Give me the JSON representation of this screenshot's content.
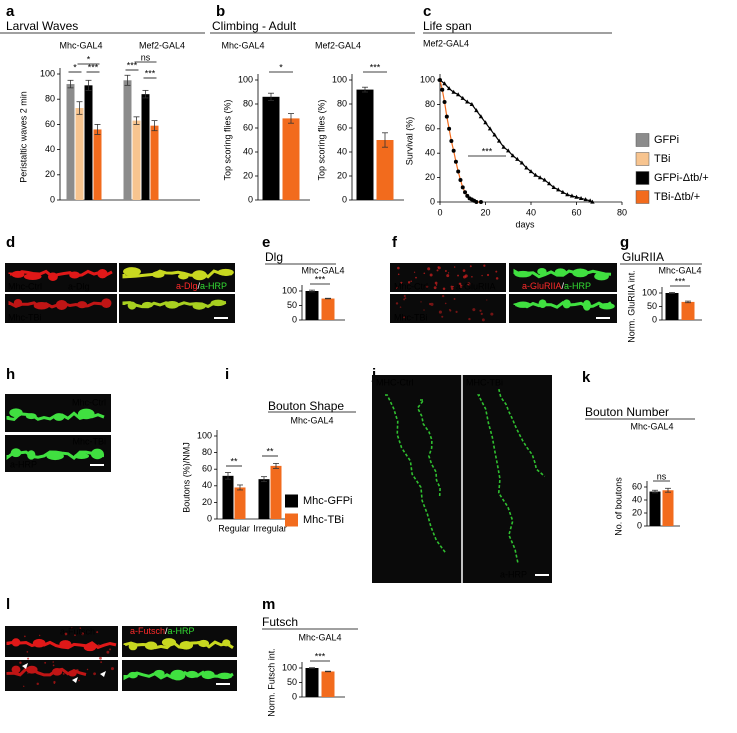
{
  "chart_data": [
    {
      "type": "bar",
      "panel": "a",
      "title": "Larval Waves",
      "groups": [
        "Mhc-GAL4",
        "Mef2-GAL4"
      ],
      "ylabel": "Peristaltic waves 2 min",
      "ylim": [
        0,
        100
      ],
      "yticks": [
        0,
        20,
        40,
        60,
        80,
        100
      ],
      "series": [
        {
          "name": "GFPi",
          "color": "#8c8c8c",
          "values": [
            92,
            95
          ],
          "errors": [
            3,
            4
          ]
        },
        {
          "name": "TBi",
          "color": "#f7c48f",
          "values": [
            73,
            63
          ],
          "errors": [
            5,
            3
          ]
        },
        {
          "name": "GFPi-Δtb/+",
          "color": "#000000",
          "values": [
            91,
            84
          ],
          "errors": [
            4,
            3
          ]
        },
        {
          "name": "TBi-Δtb/+",
          "color": "#f26b1d",
          "values": [
            56,
            59
          ],
          "errors": [
            4,
            4
          ]
        }
      ],
      "significance": [
        "*",
        "*",
        "***",
        "***",
        "ns",
        "***"
      ]
    },
    {
      "type": "bar",
      "panel": "b",
      "title": "Climbing - Adult",
      "subtitle": "Mhc-GAL4",
      "ylabel": "Top scoring flies (%)",
      "ylim": [
        0,
        100
      ],
      "yticks": [
        0,
        20,
        40,
        60,
        80,
        100
      ],
      "values": [
        86,
        68
      ],
      "errors": [
        3,
        4
      ],
      "colors": [
        "#000000",
        "#f26b1d"
      ],
      "significance": [
        "*"
      ]
    },
    {
      "type": "bar",
      "subtitle": "Mef2-GAL4",
      "ylabel": "Top scoring flies (%)",
      "ylim": [
        0,
        100
      ],
      "yticks": [
        0,
        20,
        40,
        60,
        80,
        100
      ],
      "values": [
        92,
        50
      ],
      "errors": [
        2,
        6
      ],
      "colors": [
        "#000000",
        "#f26b1d"
      ],
      "significance": [
        "***"
      ]
    },
    {
      "type": "line",
      "panel": "c",
      "title": "Life span",
      "subtitle": "Mef2-GAL4",
      "ylabel": "Survival (%)",
      "xlabel": "days",
      "xlim": [
        0,
        80
      ],
      "xticks": [
        0,
        20,
        40,
        60,
        80
      ],
      "ylim": [
        0,
        100
      ],
      "yticks": [
        0,
        20,
        40,
        60,
        80,
        100
      ],
      "series": [
        {
          "color": "#000000",
          "marker": "triangle",
          "marker_color": "#000000",
          "x": [
            0,
            2,
            4,
            6,
            8,
            10,
            12,
            14,
            16,
            18,
            20,
            22,
            24,
            26,
            28,
            30,
            32,
            34,
            36,
            38,
            40,
            42,
            44,
            46,
            48,
            50,
            52,
            54,
            56,
            58,
            60,
            62,
            64,
            66,
            67
          ],
          "values": [
            100,
            97,
            93,
            90,
            88,
            85,
            82,
            80,
            75,
            70,
            65,
            60,
            55,
            50,
            45,
            42,
            38,
            35,
            32,
            28,
            25,
            22,
            20,
            18,
            15,
            12,
            10,
            8,
            6,
            5,
            4,
            3,
            2,
            1,
            0
          ]
        },
        {
          "color": "#f26b1d",
          "marker": "circle",
          "marker_color": "#000000",
          "x": [
            0,
            1,
            2,
            3,
            4,
            5,
            6,
            7,
            8,
            9,
            10,
            11,
            12,
            13,
            14,
            15,
            16,
            18
          ],
          "values": [
            100,
            92,
            82,
            70,
            60,
            50,
            42,
            33,
            25,
            18,
            12,
            8,
            5,
            3,
            2,
            1,
            0,
            0
          ]
        }
      ],
      "significance": [
        "***"
      ]
    },
    {
      "type": "bar",
      "panel": "e",
      "title": "Dlg",
      "subtitle": "Mhc-GAL4",
      "ylim": [
        0,
        100
      ],
      "yticks": [
        0,
        50,
        100
      ],
      "values": [
        100,
        74
      ],
      "errors": [
        3,
        1
      ],
      "colors": [
        "#000000",
        "#f26b1d"
      ],
      "significance": [
        "***"
      ]
    },
    {
      "type": "bar",
      "panel": "g",
      "title": "GluRIIA",
      "subtitle": "Mhc-GAL4",
      "ylabel": "Norm. GluRIIA int.",
      "ylim": [
        0,
        100
      ],
      "yticks": [
        0,
        50,
        100
      ],
      "values": [
        100,
        67
      ],
      "errors": [
        2,
        3
      ],
      "colors": [
        "#000000",
        "#f26b1d"
      ],
      "significance": [
        "***"
      ]
    },
    {
      "type": "bar",
      "panel": "i",
      "title": "Bouton Shape",
      "subtitle": "Mhc-GAL4",
      "ylabel": "Boutons (%)/NMJ",
      "ylim": [
        0,
        100
      ],
      "yticks": [
        0,
        20,
        40,
        60,
        80,
        100
      ],
      "categories": [
        "Regular",
        "Irregular"
      ],
      "series": [
        {
          "name": "Mhc-GFPi",
          "color": "#000000",
          "values": [
            52,
            48
          ],
          "errors": [
            4,
            3
          ]
        },
        {
          "name": "Mhc-TBi",
          "color": "#f26b1d",
          "values": [
            38,
            64
          ],
          "errors": [
            3,
            3
          ]
        }
      ],
      "significance": [
        "**",
        "**"
      ]
    },
    {
      "type": "bar",
      "panel": "k",
      "title": "Bouton Number",
      "subtitle": "Mhc-GAL4",
      "ylabel": "No. of boutons",
      "ylim": [
        0,
        60
      ],
      "yticks": [
        0,
        20,
        40,
        60
      ],
      "values": [
        53,
        55
      ],
      "errors": [
        2,
        3
      ],
      "colors": [
        "#000000",
        "#f26b1d"
      ],
      "significance": [
        "ns"
      ]
    },
    {
      "type": "bar",
      "panel": "m",
      "title": "Futsch",
      "subtitle": "Mhc-GAL4",
      "ylabel": "Norm. Futsch int.",
      "ylim": [
        0,
        100
      ],
      "yticks": [
        0,
        50,
        100
      ],
      "values": [
        100,
        88
      ],
      "errors": [
        1,
        1
      ],
      "colors": [
        "#000000",
        "#f26b1d"
      ],
      "significance": [
        "***"
      ]
    }
  ],
  "images": {
    "d": {
      "panel": "d",
      "rows": [
        "Mhc-Ctrl",
        "Mhc-TBi"
      ],
      "stain": "a-Dlg",
      "separator": "/",
      "merge": "a-HRP"
    },
    "f": {
      "panel": "f",
      "rows": [
        "Mhc-Ctrl",
        "Mhc-TBi"
      ],
      "stain": "a-GluRIIA",
      "separator": "/",
      "merge": "a-HRP"
    },
    "h": {
      "panel": "h",
      "rows": [
        "Mhc-Ctrl",
        "Mhc-TBi"
      ],
      "stain": "a-HRP"
    },
    "j": {
      "panel": "j",
      "columns": [
        "MHC-Ctrl",
        "MHC-TBi"
      ],
      "stain": "a-HRP"
    },
    "l": {
      "panel": "l",
      "stain": "a-Futsch",
      "separator": "/",
      "merge": "a-HRP"
    }
  }
}
